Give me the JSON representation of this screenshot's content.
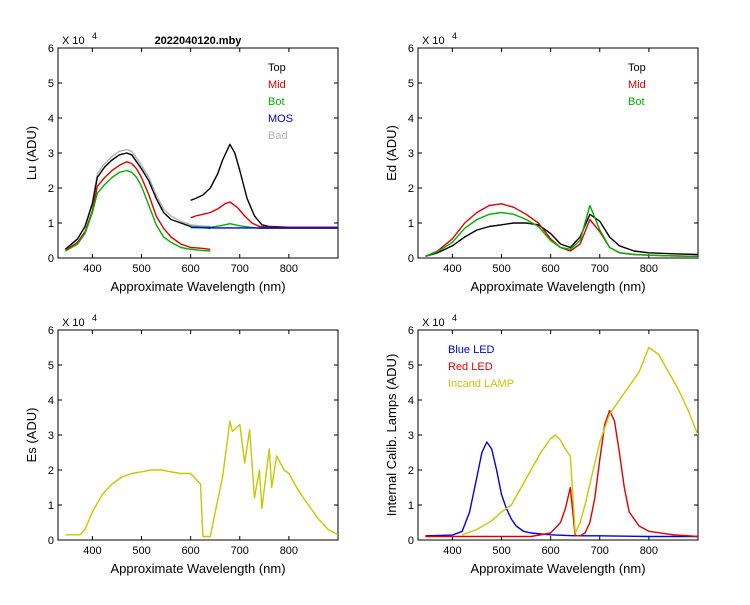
{
  "figure": {
    "title": "2022040120.mby",
    "multiplier_prefix": "X 10",
    "multiplier_exp": "4"
  },
  "chart_data": [
    {
      "id": "lu",
      "type": "line",
      "title": "2022040120.mby",
      "xlabel": "Approximate Wavelength (nm)",
      "ylabel": "Lu (ADU)",
      "xlim": [
        330,
        900
      ],
      "ylim": [
        0,
        6
      ],
      "y_multiplier": "X 10^4",
      "xticks": [
        "400",
        "500",
        "600",
        "700",
        "800"
      ],
      "yticks": [
        "0",
        "1",
        "2",
        "3",
        "4",
        "5",
        "6"
      ],
      "legend": [
        {
          "label": "Top",
          "color": "#000000"
        },
        {
          "label": "Mid",
          "color": "#e00000"
        },
        {
          "label": "Bot",
          "color": "#00b000"
        },
        {
          "label": "MOS",
          "color": "#0000e0"
        },
        {
          "label": "Bad",
          "color": "#b0b0b0"
        }
      ],
      "series": [
        {
          "name": "Bad",
          "color": "#b0b0b0",
          "x": [
            345,
            370,
            385,
            400,
            410,
            425,
            440,
            455,
            470,
            480,
            490,
            500,
            515,
            530,
            545,
            560,
            580,
            600,
            620,
            640
          ],
          "y": [
            0.25,
            0.55,
            0.9,
            1.6,
            2.4,
            2.7,
            2.9,
            3.05,
            3.1,
            3.05,
            2.85,
            2.65,
            2.3,
            1.8,
            1.4,
            1.2,
            1.05,
            0.95,
            0.92,
            0.9
          ]
        },
        {
          "name": "Top",
          "color": "#000000",
          "x": [
            345,
            370,
            385,
            400,
            410,
            425,
            440,
            455,
            470,
            480,
            490,
            500,
            515,
            530,
            545,
            560,
            580,
            600,
            620,
            640
          ],
          "y": [
            0.25,
            0.55,
            0.9,
            1.55,
            2.3,
            2.6,
            2.8,
            2.95,
            3.0,
            2.95,
            2.75,
            2.55,
            2.2,
            1.7,
            1.3,
            1.1,
            1.0,
            0.9,
            0.88,
            0.85
          ]
        },
        {
          "name": "Mid",
          "color": "#e00000",
          "x": [
            345,
            370,
            385,
            400,
            410,
            425,
            440,
            455,
            470,
            480,
            490,
            500,
            515,
            530,
            545,
            560,
            580,
            600,
            620,
            640
          ],
          "y": [
            0.22,
            0.45,
            0.75,
            1.35,
            2.05,
            2.3,
            2.5,
            2.65,
            2.75,
            2.7,
            2.55,
            2.3,
            1.8,
            1.2,
            0.85,
            0.6,
            0.4,
            0.3,
            0.28,
            0.25
          ]
        },
        {
          "name": "Bot",
          "color": "#00b000",
          "x": [
            345,
            370,
            385,
            400,
            410,
            425,
            440,
            455,
            470,
            480,
            490,
            500,
            515,
            530,
            545,
            560,
            580,
            600,
            620,
            640
          ],
          "y": [
            0.2,
            0.4,
            0.7,
            1.3,
            1.85,
            2.1,
            2.3,
            2.45,
            2.5,
            2.45,
            2.3,
            2.05,
            1.5,
            0.95,
            0.6,
            0.45,
            0.3,
            0.25,
            0.22,
            0.2
          ]
        },
        {
          "name": "Top NIR",
          "color": "#000000",
          "x": [
            600,
            610,
            625,
            640,
            655,
            665,
            675,
            680,
            690,
            700,
            715,
            730,
            745,
            760,
            800,
            850,
            900
          ],
          "y": [
            1.65,
            1.7,
            1.8,
            2.0,
            2.4,
            2.8,
            3.1,
            3.25,
            3.0,
            2.5,
            1.7,
            1.2,
            0.95,
            0.9,
            0.88,
            0.88,
            0.88
          ]
        },
        {
          "name": "Mid NIR",
          "color": "#e00000",
          "x": [
            600,
            610,
            625,
            640,
            655,
            670,
            680,
            695,
            710,
            725,
            740,
            760,
            800,
            850,
            900
          ],
          "y": [
            1.15,
            1.2,
            1.25,
            1.3,
            1.4,
            1.55,
            1.6,
            1.45,
            1.2,
            1.0,
            0.9,
            0.88,
            0.88,
            0.88,
            0.88
          ]
        },
        {
          "name": "Bot NIR",
          "color": "#00b000",
          "x": [
            600,
            620,
            640,
            660,
            680,
            700,
            720,
            740,
            760,
            800,
            850,
            900
          ],
          "y": [
            0.9,
            0.88,
            0.88,
            0.92,
            0.98,
            0.92,
            0.88,
            0.85,
            0.85,
            0.85,
            0.85,
            0.85
          ]
        },
        {
          "name": "MOS",
          "color": "#0000e0",
          "x": [
            600,
            650,
            700,
            750,
            800,
            850,
            900
          ],
          "y": [
            0.87,
            0.86,
            0.86,
            0.86,
            0.86,
            0.86,
            0.86
          ]
        }
      ]
    },
    {
      "id": "ed",
      "type": "line",
      "xlabel": "Approximate Wavelength (nm)",
      "ylabel": "Ed  (ADU)",
      "xlim": [
        330,
        900
      ],
      "ylim": [
        0,
        6
      ],
      "y_multiplier": "X 10^4",
      "xticks": [
        "400",
        "500",
        "600",
        "700",
        "800"
      ],
      "yticks": [
        "0",
        "1",
        "2",
        "3",
        "4",
        "5",
        "6"
      ],
      "legend": [
        {
          "label": "Top",
          "color": "#000000"
        },
        {
          "label": "Mid",
          "color": "#e00000"
        },
        {
          "label": "Bot",
          "color": "#00b000"
        }
      ],
      "series": [
        {
          "name": "Top",
          "color": "#000000",
          "x": [
            345,
            370,
            400,
            425,
            450,
            475,
            500,
            525,
            550,
            575,
            600,
            620,
            640,
            660,
            680,
            700,
            720,
            740,
            770,
            800,
            850,
            900
          ],
          "y": [
            0.05,
            0.15,
            0.35,
            0.6,
            0.8,
            0.9,
            0.95,
            1.0,
            1.0,
            0.95,
            0.7,
            0.4,
            0.3,
            0.6,
            1.25,
            1.05,
            0.6,
            0.35,
            0.2,
            0.15,
            0.12,
            0.1
          ]
        },
        {
          "name": "Mid",
          "color": "#e00000",
          "x": [
            345,
            370,
            400,
            425,
            450,
            475,
            500,
            525,
            550,
            575,
            600,
            620,
            640,
            660,
            680,
            700,
            720,
            740,
            770,
            800,
            850,
            900
          ],
          "y": [
            0.05,
            0.2,
            0.55,
            1.0,
            1.3,
            1.5,
            1.55,
            1.45,
            1.25,
            1.0,
            0.55,
            0.3,
            0.2,
            0.4,
            1.1,
            0.75,
            0.3,
            0.15,
            0.1,
            0.08,
            0.06,
            0.05
          ]
        },
        {
          "name": "Bot",
          "color": "#00b000",
          "x": [
            345,
            370,
            400,
            425,
            450,
            475,
            500,
            525,
            550,
            575,
            600,
            620,
            640,
            660,
            680,
            700,
            720,
            740,
            770,
            800,
            850,
            900
          ],
          "y": [
            0.05,
            0.18,
            0.45,
            0.85,
            1.1,
            1.25,
            1.3,
            1.25,
            1.1,
            0.9,
            0.5,
            0.3,
            0.25,
            0.5,
            1.5,
            0.8,
            0.3,
            0.15,
            0.1,
            0.08,
            0.06,
            0.05
          ]
        }
      ]
    },
    {
      "id": "es",
      "type": "line",
      "xlabel": "Approximate Wavelength (nm)",
      "ylabel": "Es  (ADU)",
      "xlim": [
        330,
        900
      ],
      "ylim": [
        0,
        6
      ],
      "y_multiplier": "X 10^4",
      "xticks": [
        "400",
        "500",
        "600",
        "700",
        "800"
      ],
      "yticks": [
        "0",
        "1",
        "2",
        "3",
        "4",
        "5",
        "6"
      ],
      "legend": [],
      "series": [
        {
          "name": "Es",
          "color": "#c8c800",
          "x": [
            345,
            375,
            385,
            400,
            420,
            440,
            460,
            480,
            500,
            520,
            540,
            560,
            580,
            600,
            620,
            625,
            640,
            650,
            665,
            680,
            685,
            700,
            710,
            720,
            730,
            740,
            745,
            760,
            765,
            775,
            790,
            800,
            820,
            840,
            860,
            880,
            900
          ],
          "y": [
            0.15,
            0.15,
            0.3,
            0.8,
            1.3,
            1.6,
            1.8,
            1.9,
            1.95,
            2.0,
            2.0,
            1.95,
            1.9,
            1.9,
            1.6,
            0.1,
            0.1,
            0.8,
            1.8,
            3.4,
            3.1,
            3.3,
            2.2,
            3.15,
            1.2,
            2.0,
            0.9,
            2.6,
            1.5,
            2.4,
            2.0,
            1.9,
            1.4,
            1.0,
            0.6,
            0.3,
            0.15
          ]
        }
      ]
    },
    {
      "id": "cal",
      "type": "line",
      "xlabel": "Approximate Wavelength (nm)",
      "ylabel": "Internal Calib. Lamps  (ADU)",
      "xlim": [
        330,
        900
      ],
      "ylim": [
        0,
        6
      ],
      "y_multiplier": "X 10^4",
      "xticks": [
        "400",
        "500",
        "600",
        "700",
        "800"
      ],
      "yticks": [
        "0",
        "1",
        "2",
        "3",
        "4",
        "5",
        "6"
      ],
      "legend": [
        {
          "label": "Blue LED",
          "color": "#0000e0"
        },
        {
          "label": "Red LED",
          "color": "#e00000"
        },
        {
          "label": "Incand LAMP",
          "color": "#c8c800"
        }
      ],
      "series": [
        {
          "name": "Blue LED",
          "color": "#0000e0",
          "x": [
            345,
            400,
            420,
            435,
            450,
            460,
            470,
            480,
            490,
            500,
            510,
            520,
            530,
            545,
            560,
            600,
            650,
            700,
            800,
            900
          ],
          "y": [
            0.12,
            0.14,
            0.25,
            0.8,
            1.8,
            2.5,
            2.8,
            2.6,
            2.0,
            1.3,
            0.9,
            0.6,
            0.4,
            0.25,
            0.2,
            0.15,
            0.12,
            0.12,
            0.1,
            0.1
          ]
        },
        {
          "name": "Red LED",
          "color": "#e00000",
          "x": [
            345,
            500,
            560,
            600,
            620,
            630,
            640,
            650,
            660,
            670,
            680,
            690,
            700,
            710,
            720,
            730,
            740,
            750,
            760,
            780,
            800,
            850,
            900
          ],
          "y": [
            0.1,
            0.1,
            0.1,
            0.2,
            0.5,
            0.9,
            1.5,
            0.12,
            0.12,
            0.2,
            0.5,
            1.2,
            2.3,
            3.3,
            3.7,
            3.4,
            2.5,
            1.5,
            0.8,
            0.4,
            0.25,
            0.15,
            0.1
          ]
        },
        {
          "name": "Incand LAMP",
          "color": "#c8c800",
          "x": [
            420,
            450,
            480,
            500,
            520,
            540,
            560,
            580,
            600,
            610,
            620,
            630,
            640,
            650,
            660,
            670,
            680,
            700,
            720,
            740,
            760,
            780,
            800,
            820,
            840,
            860,
            880,
            900
          ],
          "y": [
            0.15,
            0.3,
            0.55,
            0.8,
            1.0,
            1.5,
            2.0,
            2.5,
            2.9,
            3.0,
            2.85,
            2.6,
            2.4,
            0.2,
            0.5,
            1.0,
            1.6,
            2.8,
            3.6,
            4.0,
            4.4,
            4.8,
            5.5,
            5.3,
            4.8,
            4.3,
            3.7,
            3.0
          ]
        }
      ]
    }
  ]
}
